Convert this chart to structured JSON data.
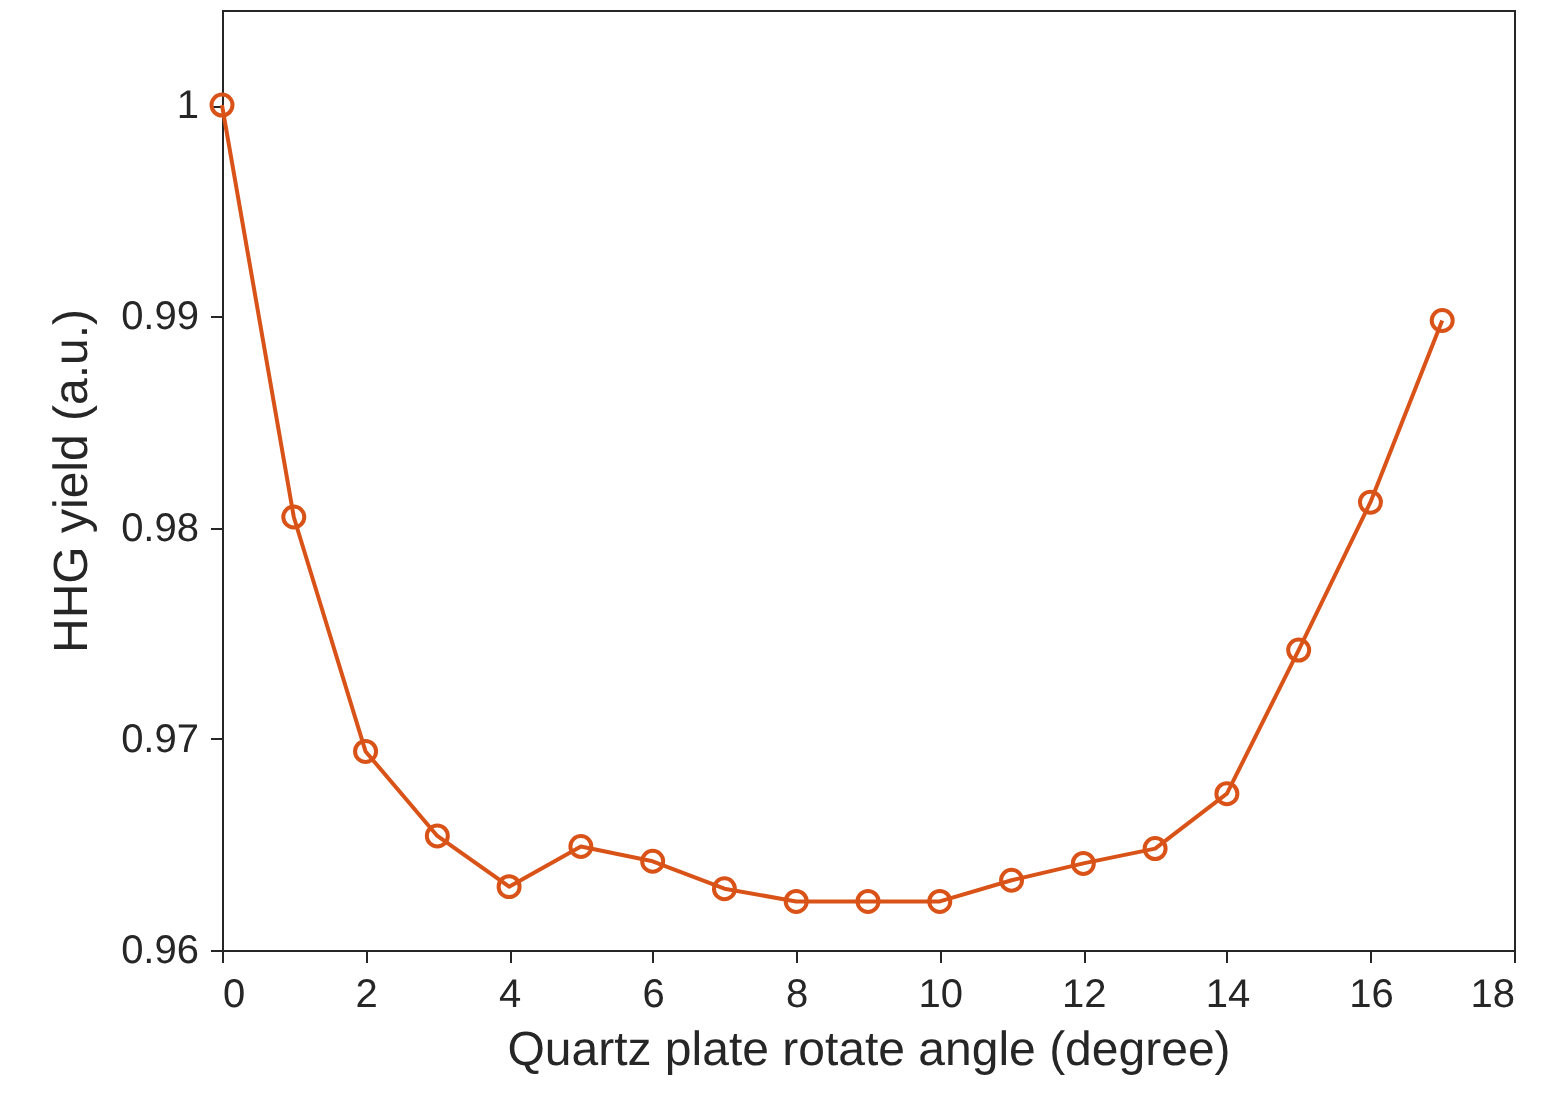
{
  "chart_data": {
    "type": "line",
    "xlabel": "Quartz plate rotate angle (degree)",
    "ylabel": "HHG yield (a.u.)",
    "x": [
      0,
      1,
      2,
      3,
      4,
      5,
      6,
      7,
      8,
      9,
      10,
      11,
      12,
      13,
      14,
      15,
      16,
      17
    ],
    "series": [
      {
        "color": "#d95319",
        "values": [
          1.0,
          0.9805,
          0.9694,
          0.9654,
          0.963,
          0.9649,
          0.9642,
          0.9629,
          0.9623,
          0.9623,
          0.9623,
          0.9633,
          0.9641,
          0.9648,
          0.9674,
          0.9742,
          0.9812,
          0.9898
        ]
      }
    ],
    "xlim": [
      0,
      18
    ],
    "xticks": [
      0,
      2,
      4,
      6,
      8,
      10,
      12,
      14,
      16,
      18
    ],
    "ylim": [
      0.96,
      1.0045
    ],
    "yticks": [
      0.96,
      0.97,
      0.98,
      0.99,
      1
    ],
    "grid": false,
    "marker": "circle",
    "line_style": "solid"
  }
}
